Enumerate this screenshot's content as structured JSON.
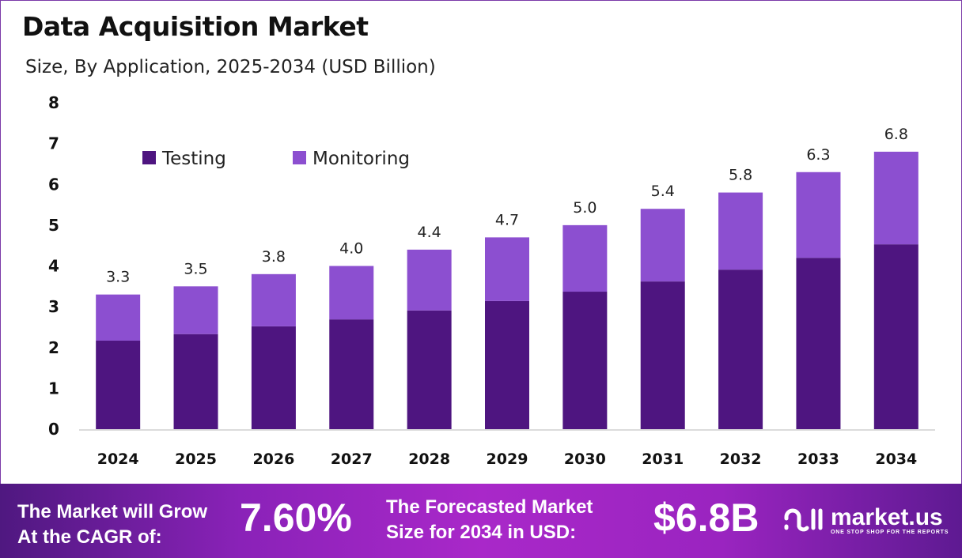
{
  "chart_data": {
    "type": "bar",
    "stacked": true,
    "title": "Data Acquisition Market",
    "subtitle": "Size, By Application, 2025-2034 (USD Billion)",
    "xlabel": "",
    "ylabel": "",
    "ylim": [
      0,
      8
    ],
    "yticks": [
      "0",
      "1",
      "2",
      "3",
      "4",
      "5",
      "6",
      "7",
      "8"
    ],
    "grid": false,
    "legend_position": "top-left",
    "categories": [
      "2024",
      "2025",
      "2026",
      "2027",
      "2028",
      "2029",
      "2030",
      "2031",
      "2032",
      "2033",
      "2034"
    ],
    "series": [
      {
        "name": "Testing",
        "color": "#4e1580",
        "values": [
          2.17,
          2.33,
          2.52,
          2.69,
          2.91,
          3.14,
          3.37,
          3.62,
          3.91,
          4.2,
          4.53
        ]
      },
      {
        "name": "Monitoring",
        "color": "#8c4fd0",
        "values": [
          1.13,
          1.17,
          1.28,
          1.31,
          1.49,
          1.56,
          1.63,
          1.78,
          1.89,
          2.1,
          2.27
        ]
      }
    ],
    "totals": [
      "3.3",
      "3.5",
      "3.8",
      "4.0",
      "4.4",
      "4.7",
      "5.0",
      "5.4",
      "5.8",
      "6.3",
      "6.8"
    ]
  },
  "footer": {
    "cagr_label_line1": "The Market will Grow",
    "cagr_label_line2": "At the CAGR of:",
    "cagr_value": "7.60%",
    "forecast_label_line1": "The Forecasted Market",
    "forecast_label_line2": "Size for 2034 in USD:",
    "forecast_value": "$6.8B",
    "logo_name": "market.us",
    "logo_tagline": "ONE STOP SHOP FOR THE REPORTS"
  }
}
